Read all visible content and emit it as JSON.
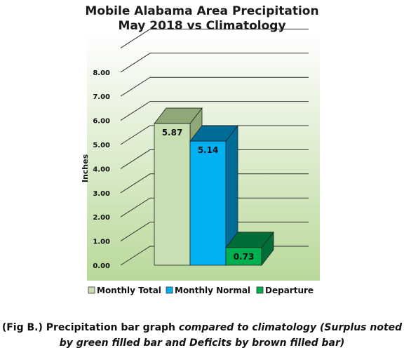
{
  "chart_data": {
    "type": "bar",
    "title": "Mobile Alabama Area Precipitation",
    "subtitle": "May 2018 vs Climatology",
    "xlabel": "",
    "ylabel": "Inches",
    "ylim": [
      0,
      8
    ],
    "yticks": [
      "0.00",
      "1.00",
      "2.00",
      "3.00",
      "4.00",
      "5.00",
      "6.00",
      "7.00",
      "8.00"
    ],
    "grid": true,
    "legend_position": "bottom",
    "bars": [
      {
        "name": "Monthly Total",
        "value": 5.87,
        "label": "5.87",
        "color": "#c6e0b4"
      },
      {
        "name": "Monthly Normal",
        "value": 5.14,
        "label": "5.14",
        "color": "#00b0f0"
      },
      {
        "name": "Departure",
        "value": 0.73,
        "label": "0.73",
        "color": "#00b050"
      }
    ]
  },
  "caption": {
    "prefix": "(Fig B.) Precipitation bar graph ",
    "italic_part": "compared to climatology (Surplus noted by green filled bar and Deficits by brown filled bar)"
  }
}
